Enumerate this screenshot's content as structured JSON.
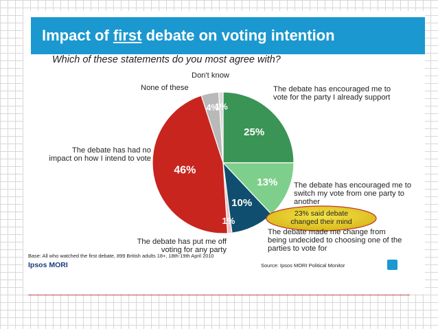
{
  "slide": {
    "title_pre": "Impact of ",
    "title_emph": "first",
    "title_post": " debate on voting intention",
    "question": "Which of these statements do you most agree with?",
    "base_note": "Base: All who watched the first debate, 899 British adults 18+, 18th-19th April 2010",
    "brand": "Ipsos MORI",
    "source": "Source: Ipsos MORI Political Monitor",
    "callout": "23% said debate changed their mind"
  },
  "chart_data": {
    "type": "pie",
    "title": "Impact of first debate on voting intention",
    "subtitle": "Which of these statements do you most agree with?",
    "slices": [
      {
        "label": "The debate has encouraged me to vote for the party I already support",
        "value": 25,
        "value_label": "25%",
        "color": "#3a9455"
      },
      {
        "label": "The debate has encouraged me to switch my vote from one party to another",
        "value": 13,
        "value_label": "13%",
        "color": "#7fcf8c"
      },
      {
        "label": "The debate made me change from being undecided to choosing one of the parties to vote for",
        "value": 10,
        "value_label": "10%",
        "color": "#0f4e6e"
      },
      {
        "label": "The debate has put me off voting for any party",
        "value": 1,
        "value_label": "1%",
        "color": "#f0c4c4"
      },
      {
        "label": "The debate has had no impact on how I intend to vote",
        "value": 46,
        "value_label": "46%",
        "color": "#c8251f"
      },
      {
        "label": "None of these",
        "value": 4,
        "value_label": "4%",
        "color": "#b9b9b9"
      },
      {
        "label": "Don't know",
        "value": 1,
        "value_label": "1%",
        "color": "#d9d9d9"
      }
    ]
  }
}
